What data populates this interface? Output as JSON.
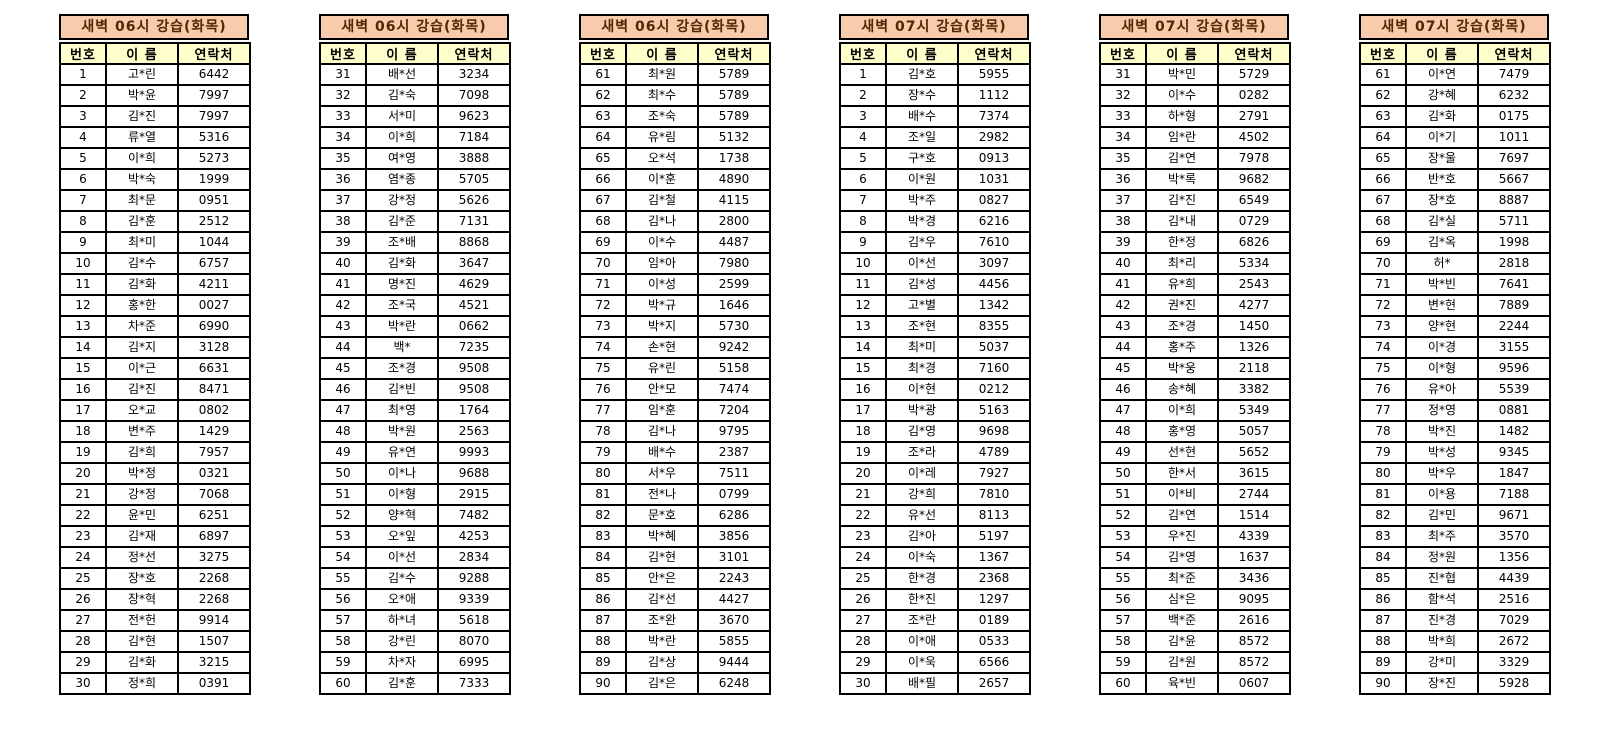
{
  "colors": {
    "canvas_bg": "#FFFFFF",
    "title_bg": "#F8CBAD",
    "title_text": "#512800",
    "header_bg": "#FFFFCC",
    "grid": "#000000",
    "cell_text": "#000000"
  },
  "columns": [
    "번호",
    "이 름",
    "연락처"
  ],
  "tables": [
    {
      "title": "새벽 06시 강습(화목)",
      "rows": [
        [
          "1",
          "고*린",
          "6442"
        ],
        [
          "2",
          "박*윤",
          "7997"
        ],
        [
          "3",
          "김*진",
          "7997"
        ],
        [
          "4",
          "류*열",
          "5316"
        ],
        [
          "5",
          "이*희",
          "5273"
        ],
        [
          "6",
          "박*숙",
          "1999"
        ],
        [
          "7",
          "최*문",
          "0951"
        ],
        [
          "8",
          "김*훈",
          "2512"
        ],
        [
          "9",
          "최*미",
          "1044"
        ],
        [
          "10",
          "김*수",
          "6757"
        ],
        [
          "11",
          "김*화",
          "4211"
        ],
        [
          "12",
          "홍*한",
          "0027"
        ],
        [
          "13",
          "차*준",
          "6990"
        ],
        [
          "14",
          "김*지",
          "3128"
        ],
        [
          "15",
          "이*근",
          "6631"
        ],
        [
          "16",
          "김*진",
          "8471"
        ],
        [
          "17",
          "오*교",
          "0802"
        ],
        [
          "18",
          "변*주",
          "1429"
        ],
        [
          "19",
          "김*희",
          "7957"
        ],
        [
          "20",
          "박*정",
          "0321"
        ],
        [
          "21",
          "강*정",
          "7068"
        ],
        [
          "22",
          "윤*민",
          "6251"
        ],
        [
          "23",
          "김*재",
          "6897"
        ],
        [
          "24",
          "정*선",
          "3275"
        ],
        [
          "25",
          "장*호",
          "2268"
        ],
        [
          "26",
          "장*혁",
          "2268"
        ],
        [
          "27",
          "전*헌",
          "9914"
        ],
        [
          "28",
          "김*현",
          "1507"
        ],
        [
          "29",
          "김*화",
          "3215"
        ],
        [
          "30",
          "정*희",
          "0391"
        ]
      ]
    },
    {
      "title": "새벽 06시 강습(화목)",
      "rows": [
        [
          "31",
          "배*선",
          "3234"
        ],
        [
          "32",
          "김*숙",
          "7098"
        ],
        [
          "33",
          "서*미",
          "9623"
        ],
        [
          "34",
          "이*희",
          "7184"
        ],
        [
          "35",
          "여*영",
          "3888"
        ],
        [
          "36",
          "염*종",
          "5705"
        ],
        [
          "37",
          "강*정",
          "5626"
        ],
        [
          "38",
          "김*준",
          "7131"
        ],
        [
          "39",
          "조*배",
          "8868"
        ],
        [
          "40",
          "김*화",
          "3647"
        ],
        [
          "41",
          "명*진",
          "4629"
        ],
        [
          "42",
          "조*국",
          "4521"
        ],
        [
          "43",
          "박*란",
          "0662"
        ],
        [
          "44",
          "백*",
          "7235"
        ],
        [
          "45",
          "조*경",
          "9508"
        ],
        [
          "46",
          "김*빈",
          "9508"
        ],
        [
          "47",
          "최*영",
          "1764"
        ],
        [
          "48",
          "박*원",
          "2563"
        ],
        [
          "49",
          "유*연",
          "9993"
        ],
        [
          "50",
          "이*나",
          "9688"
        ],
        [
          "51",
          "이*형",
          "2915"
        ],
        [
          "52",
          "양*혁",
          "7482"
        ],
        [
          "53",
          "오*잎",
          "4253"
        ],
        [
          "54",
          "이*선",
          "2834"
        ],
        [
          "55",
          "김*수",
          "9288"
        ],
        [
          "56",
          "오*애",
          "9339"
        ],
        [
          "57",
          "하*녀",
          "5618"
        ],
        [
          "58",
          "강*린",
          "8070"
        ],
        [
          "59",
          "차*자",
          "6995"
        ],
        [
          "60",
          "김*훈",
          "7333"
        ]
      ]
    },
    {
      "title": "새벽 06시 강습(화목)",
      "rows": [
        [
          "61",
          "최*원",
          "5789"
        ],
        [
          "62",
          "최*수",
          "5789"
        ],
        [
          "63",
          "조*숙",
          "5789"
        ],
        [
          "64",
          "유*림",
          "5132"
        ],
        [
          "65",
          "오*석",
          "1738"
        ],
        [
          "66",
          "이*훈",
          "4890"
        ],
        [
          "67",
          "김*철",
          "4115"
        ],
        [
          "68",
          "김*나",
          "2800"
        ],
        [
          "69",
          "이*수",
          "4487"
        ],
        [
          "70",
          "임*아",
          "7980"
        ],
        [
          "71",
          "이*성",
          "2599"
        ],
        [
          "72",
          "박*규",
          "1646"
        ],
        [
          "73",
          "박*지",
          "5730"
        ],
        [
          "74",
          "손*현",
          "9242"
        ],
        [
          "75",
          "유*린",
          "5158"
        ],
        [
          "76",
          "안*모",
          "7474"
        ],
        [
          "77",
          "임*훈",
          "7204"
        ],
        [
          "78",
          "김*나",
          "9795"
        ],
        [
          "79",
          "배*수",
          "2387"
        ],
        [
          "80",
          "서*우",
          "7511"
        ],
        [
          "81",
          "전*나",
          "0799"
        ],
        [
          "82",
          "문*호",
          "6286"
        ],
        [
          "83",
          "박*혜",
          "3856"
        ],
        [
          "84",
          "김*현",
          "3101"
        ],
        [
          "85",
          "안*은",
          "2243"
        ],
        [
          "86",
          "김*선",
          "4427"
        ],
        [
          "87",
          "조*완",
          "3670"
        ],
        [
          "88",
          "박*란",
          "5855"
        ],
        [
          "89",
          "김*상",
          "9444"
        ],
        [
          "90",
          "김*은",
          "6248"
        ]
      ]
    },
    {
      "title": "새벽 07시 강습(화목)",
      "rows": [
        [
          "1",
          "김*호",
          "5955"
        ],
        [
          "2",
          "장*수",
          "1112"
        ],
        [
          "3",
          "배*수",
          "7374"
        ],
        [
          "4",
          "조*일",
          "2982"
        ],
        [
          "5",
          "구*호",
          "0913"
        ],
        [
          "6",
          "이*원",
          "1031"
        ],
        [
          "7",
          "박*주",
          "0827"
        ],
        [
          "8",
          "박*경",
          "6216"
        ],
        [
          "9",
          "김*우",
          "7610"
        ],
        [
          "10",
          "이*선",
          "3097"
        ],
        [
          "11",
          "김*성",
          "4456"
        ],
        [
          "12",
          "고*별",
          "1342"
        ],
        [
          "13",
          "조*현",
          "8355"
        ],
        [
          "14",
          "최*미",
          "5037"
        ],
        [
          "15",
          "최*경",
          "7160"
        ],
        [
          "16",
          "이*현",
          "0212"
        ],
        [
          "17",
          "박*광",
          "5163"
        ],
        [
          "18",
          "김*영",
          "9698"
        ],
        [
          "19",
          "조*라",
          "4789"
        ],
        [
          "20",
          "이*레",
          "7927"
        ],
        [
          "21",
          "강*희",
          "7810"
        ],
        [
          "22",
          "유*선",
          "8113"
        ],
        [
          "23",
          "김*아",
          "5197"
        ],
        [
          "24",
          "이*숙",
          "1367"
        ],
        [
          "25",
          "한*경",
          "2368"
        ],
        [
          "26",
          "한*진",
          "1297"
        ],
        [
          "27",
          "조*란",
          "0189"
        ],
        [
          "28",
          "이*애",
          "0533"
        ],
        [
          "29",
          "이*욱",
          "6566"
        ],
        [
          "30",
          "배*필",
          "2657"
        ]
      ]
    },
    {
      "title": "새벽 07시 강습(화목)",
      "rows": [
        [
          "31",
          "박*민",
          "5729"
        ],
        [
          "32",
          "이*수",
          "0282"
        ],
        [
          "33",
          "하*형",
          "2791"
        ],
        [
          "34",
          "임*란",
          "4502"
        ],
        [
          "35",
          "김*연",
          "7978"
        ],
        [
          "36",
          "박*록",
          "9682"
        ],
        [
          "37",
          "김*진",
          "6549"
        ],
        [
          "38",
          "김*내",
          "0729"
        ],
        [
          "39",
          "한*정",
          "6826"
        ],
        [
          "40",
          "최*리",
          "5334"
        ],
        [
          "41",
          "유*희",
          "2543"
        ],
        [
          "42",
          "권*진",
          "4277"
        ],
        [
          "43",
          "조*경",
          "1450"
        ],
        [
          "44",
          "홍*주",
          "1326"
        ],
        [
          "45",
          "박*웅",
          "2118"
        ],
        [
          "46",
          "송*혜",
          "3382"
        ],
        [
          "47",
          "이*희",
          "5349"
        ],
        [
          "48",
          "홍*영",
          "5057"
        ],
        [
          "49",
          "선*현",
          "5652"
        ],
        [
          "50",
          "한*서",
          "3615"
        ],
        [
          "51",
          "이*비",
          "2744"
        ],
        [
          "52",
          "김*연",
          "1514"
        ],
        [
          "53",
          "우*진",
          "4339"
        ],
        [
          "54",
          "김*영",
          "1637"
        ],
        [
          "55",
          "최*준",
          "3436"
        ],
        [
          "56",
          "심*은",
          "9095"
        ],
        [
          "57",
          "백*준",
          "2616"
        ],
        [
          "58",
          "김*윤",
          "8572"
        ],
        [
          "59",
          "김*원",
          "8572"
        ],
        [
          "60",
          "육*빈",
          "0607"
        ]
      ]
    },
    {
      "title": "새벽 07시 강습(화목)",
      "rows": [
        [
          "61",
          "이*연",
          "7479"
        ],
        [
          "62",
          "강*혜",
          "6232"
        ],
        [
          "63",
          "김*화",
          "0175"
        ],
        [
          "64",
          "이*기",
          "1011"
        ],
        [
          "65",
          "장*울",
          "7697"
        ],
        [
          "66",
          "반*호",
          "5667"
        ],
        [
          "67",
          "장*호",
          "8887"
        ],
        [
          "68",
          "김*실",
          "5711"
        ],
        [
          "69",
          "김*옥",
          "1998"
        ],
        [
          "70",
          "허*",
          "2818"
        ],
        [
          "71",
          "박*빈",
          "7641"
        ],
        [
          "72",
          "변*현",
          "7889"
        ],
        [
          "73",
          "양*현",
          "2244"
        ],
        [
          "74",
          "이*경",
          "3155"
        ],
        [
          "75",
          "이*형",
          "9596"
        ],
        [
          "76",
          "유*아",
          "5539"
        ],
        [
          "77",
          "정*영",
          "0881"
        ],
        [
          "78",
          "박*진",
          "1482"
        ],
        [
          "79",
          "박*성",
          "9345"
        ],
        [
          "80",
          "박*우",
          "1847"
        ],
        [
          "81",
          "이*용",
          "7188"
        ],
        [
          "82",
          "김*민",
          "9671"
        ],
        [
          "83",
          "최*주",
          "3570"
        ],
        [
          "84",
          "정*원",
          "1356"
        ],
        [
          "85",
          "진*협",
          "4439"
        ],
        [
          "86",
          "함*석",
          "2516"
        ],
        [
          "87",
          "진*경",
          "7029"
        ],
        [
          "88",
          "박*희",
          "2672"
        ],
        [
          "89",
          "강*미",
          "3329"
        ],
        [
          "90",
          "장*진",
          "5928"
        ]
      ]
    }
  ]
}
